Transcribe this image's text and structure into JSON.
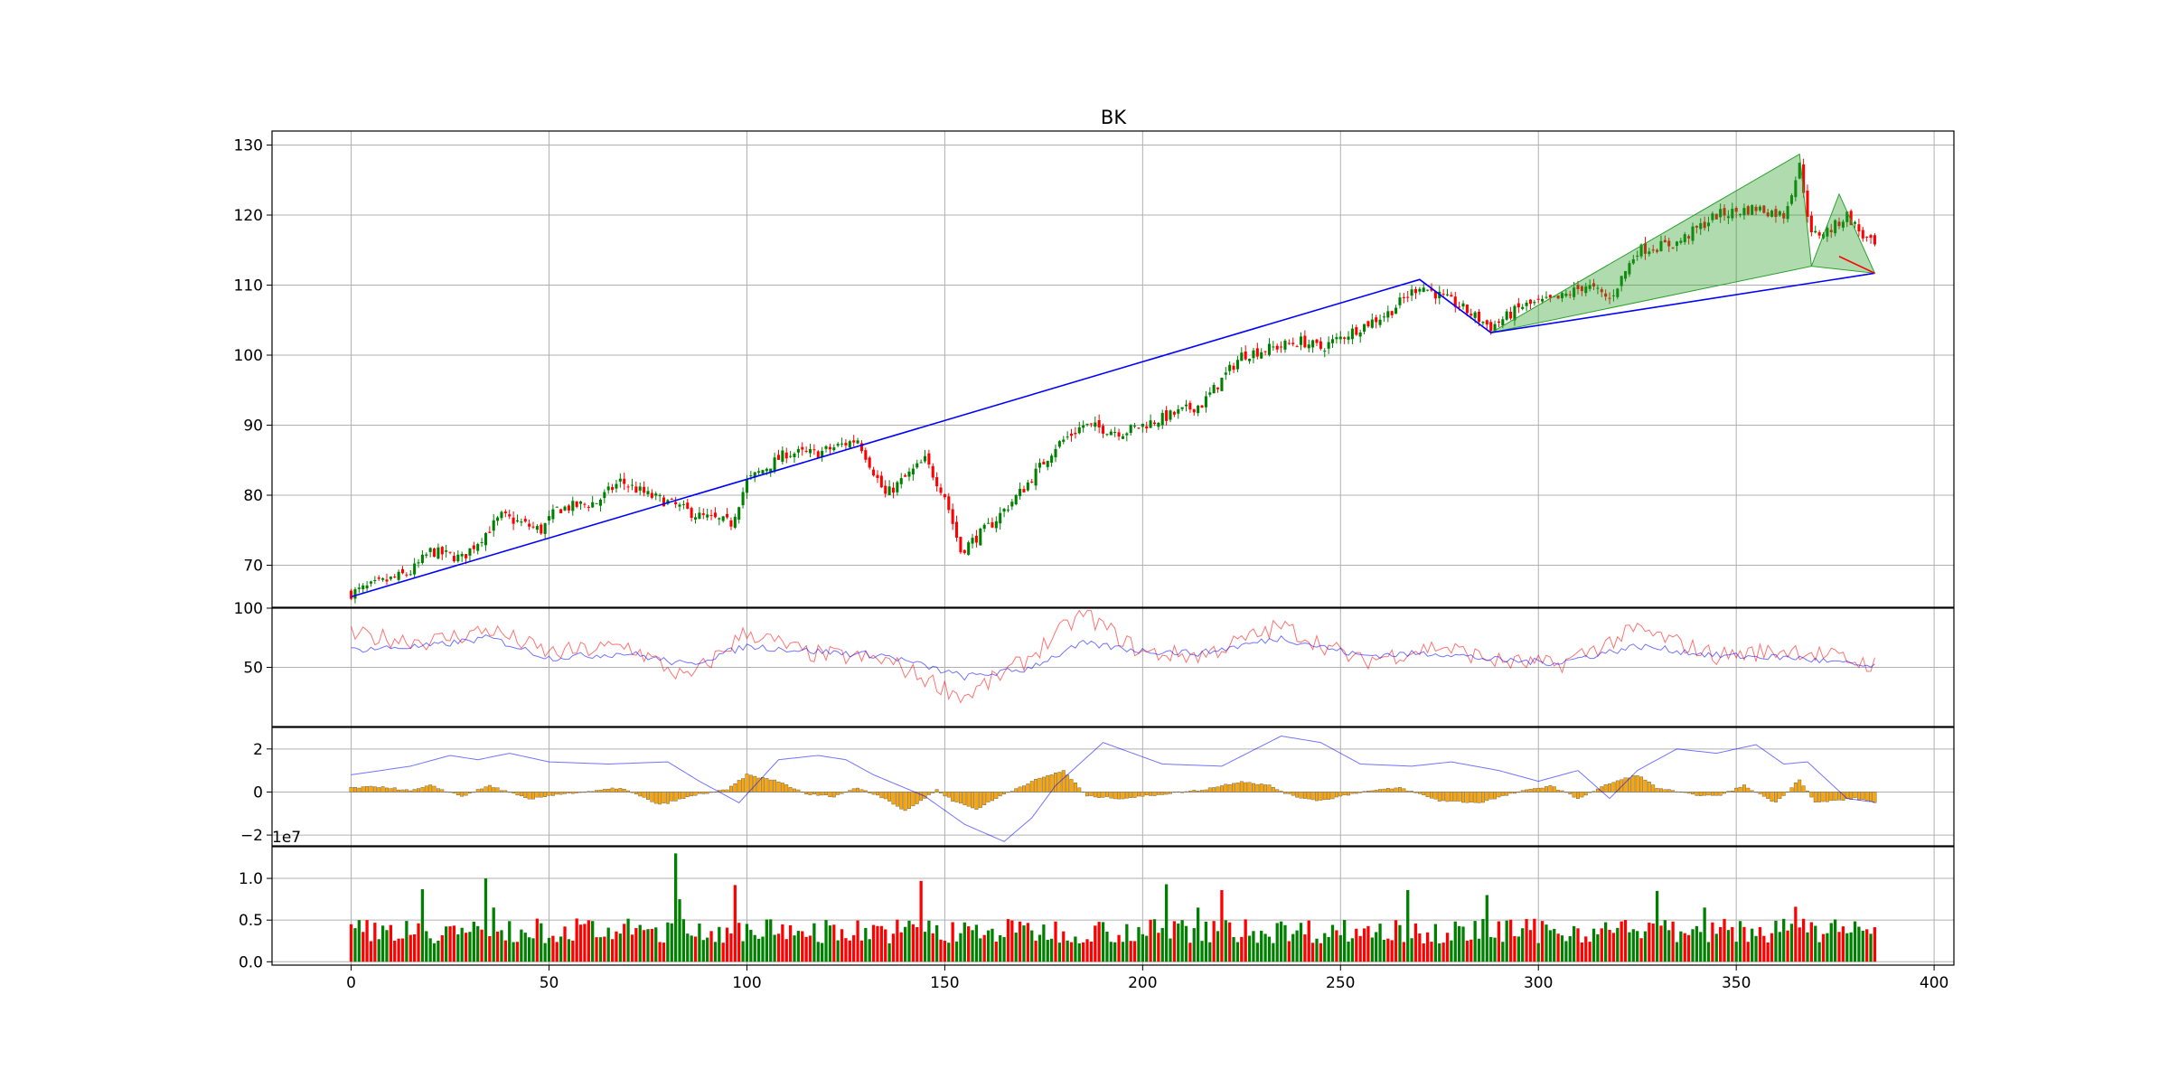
{
  "chart_data": {
    "type": "candlestick",
    "title": "BK",
    "grid": true,
    "colors": {
      "up": "#008000",
      "down": "#ff0000",
      "overlay_line": "#0000ff",
      "pattern_fill": "#2ca02c",
      "pattern_edge": "#2ca02c",
      "pattern_leg": "#ff0000",
      "osc_fast": "#ff0000",
      "osc_slow": "#0000ff",
      "hist_fill": "#ffa500",
      "hist_edge": "#555555",
      "grid": "#b0b0b0"
    },
    "x_axis": {
      "xlim": [
        -20,
        405
      ],
      "ticks": [
        0,
        50,
        100,
        150,
        200,
        250,
        300,
        350,
        400
      ],
      "tick_labels": [
        "0",
        "50",
        "100",
        "150",
        "200",
        "250",
        "300",
        "350",
        "400"
      ],
      "n_bars": 386
    },
    "price_panel": {
      "ylim": [
        64,
        132
      ],
      "yticks": [
        70,
        80,
        90,
        100,
        110,
        120,
        130
      ],
      "ytick_labels": [
        "70",
        "80",
        "90",
        "100",
        "110",
        "120",
        "130"
      ],
      "close_anchors": [
        [
          0,
          66
        ],
        [
          10,
          68
        ],
        [
          15,
          69
        ],
        [
          20,
          72
        ],
        [
          28,
          71
        ],
        [
          38,
          77
        ],
        [
          48,
          75
        ],
        [
          52,
          78
        ],
        [
          62,
          79
        ],
        [
          68,
          82
        ],
        [
          75,
          80
        ],
        [
          80,
          79
        ],
        [
          88,
          77
        ],
        [
          96,
          76
        ],
        [
          100,
          82
        ],
        [
          110,
          86
        ],
        [
          118,
          86
        ],
        [
          128,
          88
        ],
        [
          135,
          80
        ],
        [
          145,
          85
        ],
        [
          150,
          80
        ],
        [
          154,
          72
        ],
        [
          162,
          76
        ],
        [
          170,
          81
        ],
        [
          178,
          87
        ],
        [
          185,
          90
        ],
        [
          195,
          89
        ],
        [
          205,
          91
        ],
        [
          215,
          93
        ],
        [
          225,
          100
        ],
        [
          240,
          102
        ],
        [
          245,
          101
        ],
        [
          255,
          104
        ],
        [
          262,
          106
        ],
        [
          270,
          110
        ],
        [
          280,
          107
        ],
        [
          288,
          104
        ],
        [
          296,
          107
        ],
        [
          305,
          108
        ],
        [
          312,
          110
        ],
        [
          318,
          108
        ],
        [
          325,
          115
        ],
        [
          335,
          116
        ],
        [
          345,
          120
        ],
        [
          355,
          121
        ],
        [
          362,
          120
        ],
        [
          366,
          127
        ],
        [
          369,
          117
        ],
        [
          374,
          118
        ],
        [
          378,
          120
        ],
        [
          382,
          117
        ],
        [
          386,
          115
        ]
      ],
      "trendlines": [
        {
          "x": [
            0,
            270,
            288,
            385
          ],
          "y": [
            65.5,
            110.8,
            103.2,
            111.7
          ]
        }
      ],
      "pattern_triangles": [
        {
          "x": [
            288,
            366,
            369
          ],
          "y": [
            103.2,
            128.7,
            112.7
          ]
        },
        {
          "x": [
            369,
            376,
            385
          ],
          "y": [
            112.7,
            123.0,
            111.7
          ]
        }
      ],
      "pattern_legs": [
        {
          "x": [
            376,
            385
          ],
          "y": [
            114.1,
            111.7
          ]
        }
      ]
    },
    "oscillator_panel": {
      "ylim": [
        0,
        100
      ],
      "yticks": [
        50,
        100
      ],
      "ytick_labels": [
        "50",
        "100"
      ],
      "series": [
        {
          "role": "fast",
          "anchors": [
            [
              0,
              77
            ],
            [
              20,
              72
            ],
            [
              35,
              82
            ],
            [
              50,
              62
            ],
            [
              70,
              68
            ],
            [
              85,
              40
            ],
            [
              100,
              80
            ],
            [
              115,
              62
            ],
            [
              135,
              56
            ],
            [
              155,
              25
            ],
            [
              170,
              55
            ],
            [
              185,
              96
            ],
            [
              200,
              62
            ],
            [
              215,
              60
            ],
            [
              235,
              85
            ],
            [
              255,
              55
            ],
            [
              275,
              68
            ],
            [
              290,
              55
            ],
            [
              305,
              52
            ],
            [
              325,
              82
            ],
            [
              345,
              60
            ],
            [
              365,
              65
            ],
            [
              385,
              52
            ]
          ]
        },
        {
          "role": "slow",
          "anchors": [
            [
              0,
              65
            ],
            [
              20,
              68
            ],
            [
              35,
              75
            ],
            [
              50,
              58
            ],
            [
              70,
              62
            ],
            [
              85,
              52
            ],
            [
              100,
              68
            ],
            [
              115,
              64
            ],
            [
              135,
              60
            ],
            [
              155,
              42
            ],
            [
              170,
              48
            ],
            [
              185,
              70
            ],
            [
              200,
              64
            ],
            [
              215,
              62
            ],
            [
              235,
              75
            ],
            [
              255,
              60
            ],
            [
              275,
              62
            ],
            [
              290,
              56
            ],
            [
              305,
              54
            ],
            [
              325,
              68
            ],
            [
              345,
              60
            ],
            [
              365,
              58
            ],
            [
              385,
              50
            ]
          ]
        }
      ]
    },
    "macd_panel": {
      "ylim": [
        -2.5,
        3
      ],
      "yticks": [
        -2,
        0,
        2
      ],
      "ytick_labels": [
        "−2",
        "0",
        "2"
      ],
      "line_anchors": [
        [
          0,
          0.8
        ],
        [
          15,
          1.2
        ],
        [
          25,
          1.7
        ],
        [
          32,
          1.5
        ],
        [
          40,
          1.8
        ],
        [
          50,
          1.4
        ],
        [
          65,
          1.3
        ],
        [
          80,
          1.4
        ],
        [
          88,
          0.5
        ],
        [
          98,
          -0.5
        ],
        [
          108,
          1.5
        ],
        [
          118,
          1.7
        ],
        [
          125,
          1.5
        ],
        [
          132,
          0.8
        ],
        [
          145,
          -0.2
        ],
        [
          155,
          -1.5
        ],
        [
          165,
          -2.3
        ],
        [
          172,
          -1.2
        ],
        [
          178,
          0.3
        ],
        [
          190,
          2.3
        ],
        [
          205,
          1.3
        ],
        [
          220,
          1.2
        ],
        [
          235,
          2.6
        ],
        [
          245,
          2.3
        ],
        [
          255,
          1.3
        ],
        [
          268,
          1.2
        ],
        [
          278,
          1.4
        ],
        [
          290,
          1.0
        ],
        [
          300,
          0.5
        ],
        [
          310,
          1.0
        ],
        [
          318,
          -0.3
        ],
        [
          325,
          1.0
        ],
        [
          335,
          2.0
        ],
        [
          345,
          1.8
        ],
        [
          355,
          2.2
        ],
        [
          362,
          1.3
        ],
        [
          368,
          1.4
        ],
        [
          378,
          -0.3
        ],
        [
          386,
          -0.5
        ]
      ],
      "hist_anchors": [
        [
          0,
          0.2
        ],
        [
          8,
          0.25
        ],
        [
          15,
          0.05
        ],
        [
          20,
          0.3
        ],
        [
          28,
          -0.2
        ],
        [
          35,
          0.3
        ],
        [
          45,
          -0.35
        ],
        [
          52,
          -0.1
        ],
        [
          60,
          0
        ],
        [
          68,
          0.2
        ],
        [
          78,
          -0.6
        ],
        [
          88,
          -0.1
        ],
        [
          95,
          0.1
        ],
        [
          100,
          0.8
        ],
        [
          108,
          0.5
        ],
        [
          115,
          -0.1
        ],
        [
          122,
          -0.2
        ],
        [
          128,
          0.2
        ],
        [
          135,
          -0.3
        ],
        [
          140,
          -0.9
        ],
        [
          148,
          0.1
        ],
        [
          152,
          -0.4
        ],
        [
          158,
          -0.8
        ],
        [
          165,
          -0.1
        ],
        [
          172,
          0.5
        ],
        [
          180,
          1.0
        ],
        [
          186,
          -0.2
        ],
        [
          195,
          -0.3
        ],
        [
          205,
          -0.1
        ],
        [
          215,
          0.1
        ],
        [
          225,
          0.5
        ],
        [
          232,
          0.3
        ],
        [
          238,
          -0.2
        ],
        [
          245,
          -0.4
        ],
        [
          255,
          0
        ],
        [
          265,
          0.2
        ],
        [
          275,
          -0.4
        ],
        [
          285,
          -0.5
        ],
        [
          295,
          0
        ],
        [
          303,
          0.3
        ],
        [
          310,
          -0.3
        ],
        [
          318,
          0.4
        ],
        [
          325,
          0.8
        ],
        [
          330,
          0.2
        ],
        [
          338,
          -0.1
        ],
        [
          345,
          -0.2
        ],
        [
          352,
          0.3
        ],
        [
          360,
          -0.5
        ],
        [
          366,
          0.6
        ],
        [
          370,
          -0.5
        ],
        [
          380,
          -0.3
        ],
        [
          386,
          -0.5
        ]
      ]
    },
    "volume_panel": {
      "ylim": [
        -0.04,
        1.38
      ],
      "yticks": [
        0.0,
        0.5,
        1.0
      ],
      "ytick_labels": [
        "0.0",
        "0.5",
        "1.0"
      ],
      "offset_label": "1e7",
      "spikes": [
        [
          18,
          0.87
        ],
        [
          34,
          1.0
        ],
        [
          36,
          0.65
        ],
        [
          82,
          1.3
        ],
        [
          83,
          0.75
        ],
        [
          97,
          0.92
        ],
        [
          144,
          0.97
        ],
        [
          206,
          0.93
        ],
        [
          214,
          0.65
        ],
        [
          220,
          0.86
        ],
        [
          267,
          0.86
        ],
        [
          287,
          0.8
        ],
        [
          330,
          0.85
        ],
        [
          342,
          0.65
        ],
        [
          365,
          0.66
        ]
      ],
      "base_range": [
        0.22,
        0.52
      ]
    }
  }
}
